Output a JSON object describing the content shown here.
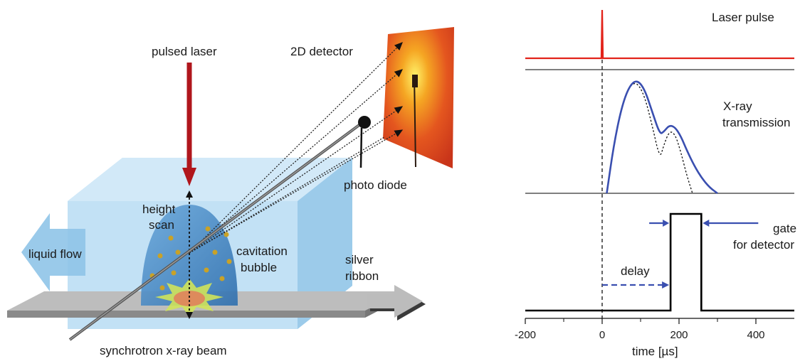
{
  "schematic": {
    "labels": {
      "pulsed_laser": "pulsed laser",
      "detector": "2D detector",
      "photo_diode": "photo diode",
      "height_scan_1": "height",
      "height_scan_2": "scan",
      "liquid_flow": "liquid flow",
      "cavitation_1": "cavitation",
      "cavitation_2": "bubble",
      "silver_1": "silver",
      "silver_2": "ribbon",
      "beam": "synchrotron x-ray beam"
    },
    "colors": {
      "laser": "#b0161c",
      "water": "#a9d3ef",
      "bubble": "#4f8fc6",
      "ribbon": "#a5a5a5",
      "detector": "#e4561f"
    }
  },
  "timing": {
    "labels": {
      "laser_pulse": "Laser pulse",
      "xray_1": "X-ray",
      "xray_2": "transmission",
      "gate_1": "gate",
      "gate_2": "for detector",
      "delay": "delay"
    },
    "colors": {
      "laser_trace": "#e2231a",
      "xray_trace": "#3a4fb0",
      "gate_trace": "#000000"
    }
  },
  "chart_data": {
    "type": "line",
    "xlabel": "time [µs]",
    "xlim": [
      -200,
      500
    ],
    "xticks": [
      -200,
      0,
      200,
      400
    ],
    "xtick_labels": [
      "-200",
      "0",
      "200",
      "400"
    ],
    "series": [
      {
        "name": "Laser pulse",
        "x": [
          -200,
          -2,
          0,
          2,
          500
        ],
        "y": [
          0,
          0,
          1,
          0,
          0
        ]
      },
      {
        "name": "X-ray transmission",
        "x": [
          12,
          30,
          50,
          70,
          90,
          110,
          130,
          150,
          160,
          175,
          190,
          205,
          220,
          240,
          260,
          280,
          300
        ],
        "y": [
          0,
          0.42,
          0.75,
          0.94,
          1.0,
          0.92,
          0.72,
          0.52,
          0.54,
          0.6,
          0.58,
          0.5,
          0.38,
          0.24,
          0.13,
          0.05,
          0
        ]
      },
      {
        "name": "X-ray transmission fit",
        "x": [
          12,
          30,
          50,
          70,
          90,
          110,
          130,
          150,
          160,
          175,
          190,
          205,
          220,
          235
        ],
        "y": [
          0,
          0.42,
          0.75,
          0.94,
          0.98,
          0.86,
          0.6,
          0.3,
          0.42,
          0.55,
          0.52,
          0.36,
          0.16,
          0
        ]
      },
      {
        "name": "gate for detector",
        "x": [
          -200,
          178,
          178,
          258,
          258,
          500
        ],
        "y": [
          0,
          0,
          1,
          1,
          0,
          0
        ]
      }
    ],
    "annotations": {
      "trigger_x": 0,
      "gate_start": 178,
      "gate_end": 258
    }
  }
}
